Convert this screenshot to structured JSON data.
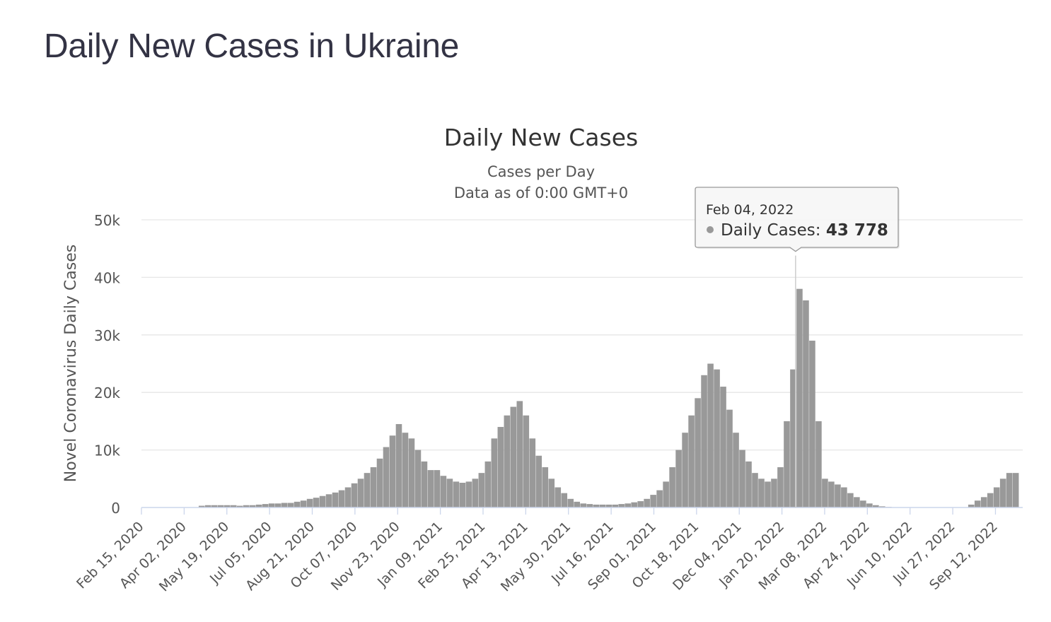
{
  "page": {
    "title": "Daily New Cases in Ukraine"
  },
  "colors": {
    "bar": "#999999",
    "grid": "#e6e6e6",
    "axis_line": "#ccd6eb",
    "text": "#555555"
  },
  "tooltip": {
    "date": "Feb 04, 2022",
    "series_label": "Daily Cases: ",
    "value_text": "43 778"
  },
  "chart_data": {
    "type": "bar",
    "title": "Daily New Cases",
    "subtitle": [
      "Cases per Day",
      "Data as of 0:00 GMT+0"
    ],
    "ylabel": "Novel Coronavirus Daily Cases",
    "xlabel": "",
    "ylim": [
      0,
      50000
    ],
    "yticks": [
      0,
      10000,
      20000,
      30000,
      40000,
      50000
    ],
    "ytick_labels": [
      "0",
      "10k",
      "20k",
      "30k",
      "40k",
      "50k"
    ],
    "x_range": [
      "2020-02-15",
      "2022-10-12"
    ],
    "xtick_labels": [
      "Feb 15, 2020",
      "Apr 02, 2020",
      "May 19, 2020",
      "Jul 05, 2020",
      "Aug 21, 2020",
      "Oct 07, 2020",
      "Nov 23, 2020",
      "Jan 09, 2021",
      "Feb 25, 2021",
      "Apr 13, 2021",
      "May 30, 2021",
      "Jul 16, 2021",
      "Sep 01, 2021",
      "Oct 18, 2021",
      "Dec 04, 2021",
      "Jan 20, 2022",
      "Mar 08, 2022",
      "Apr 24, 2022",
      "Jun 10, 2022",
      "Jul 27, 2022",
      "Sep 12, 2022"
    ],
    "grid": true,
    "legend": "none",
    "highlight": {
      "date": "2022-02-04",
      "value": 43778
    },
    "series": [
      {
        "name": "Daily Cases",
        "values_description": "Approximate weekly daily-case values read from the chart, in cases",
        "week_start": [
          "2020-02-15",
          "2020-02-22",
          "2020-02-29",
          "2020-03-07",
          "2020-03-14",
          "2020-03-21",
          "2020-03-28",
          "2020-04-04",
          "2020-04-11",
          "2020-04-18",
          "2020-04-25",
          "2020-05-02",
          "2020-05-09",
          "2020-05-16",
          "2020-05-23",
          "2020-05-30",
          "2020-06-06",
          "2020-06-13",
          "2020-06-20",
          "2020-06-27",
          "2020-07-04",
          "2020-07-11",
          "2020-07-18",
          "2020-07-25",
          "2020-08-01",
          "2020-08-08",
          "2020-08-15",
          "2020-08-22",
          "2020-08-29",
          "2020-09-05",
          "2020-09-12",
          "2020-09-19",
          "2020-09-26",
          "2020-10-03",
          "2020-10-10",
          "2020-10-17",
          "2020-10-24",
          "2020-10-31",
          "2020-11-07",
          "2020-11-14",
          "2020-11-21",
          "2020-11-28",
          "2020-12-05",
          "2020-12-12",
          "2020-12-19",
          "2020-12-26",
          "2021-01-02",
          "2021-01-09",
          "2021-01-16",
          "2021-01-23",
          "2021-01-30",
          "2021-02-06",
          "2021-02-13",
          "2021-02-20",
          "2021-02-27",
          "2021-03-06",
          "2021-03-13",
          "2021-03-20",
          "2021-03-27",
          "2021-04-03",
          "2021-04-10",
          "2021-04-17",
          "2021-04-24",
          "2021-05-01",
          "2021-05-08",
          "2021-05-15",
          "2021-05-22",
          "2021-05-29",
          "2021-06-05",
          "2021-06-12",
          "2021-06-19",
          "2021-06-26",
          "2021-07-03",
          "2021-07-10",
          "2021-07-17",
          "2021-07-24",
          "2021-07-31",
          "2021-08-07",
          "2021-08-14",
          "2021-08-21",
          "2021-08-28",
          "2021-09-04",
          "2021-09-11",
          "2021-09-18",
          "2021-09-25",
          "2021-10-02",
          "2021-10-09",
          "2021-10-16",
          "2021-10-23",
          "2021-10-30",
          "2021-11-06",
          "2021-11-13",
          "2021-11-20",
          "2021-11-27",
          "2021-12-04",
          "2021-12-11",
          "2021-12-18",
          "2021-12-25",
          "2022-01-01",
          "2022-01-08",
          "2022-01-15",
          "2022-01-22",
          "2022-01-29",
          "2022-02-05",
          "2022-02-12",
          "2022-02-19",
          "2022-02-26",
          "2022-03-05",
          "2022-03-12",
          "2022-03-19",
          "2022-03-26",
          "2022-04-02",
          "2022-04-09",
          "2022-04-16",
          "2022-04-23",
          "2022-04-30",
          "2022-05-07",
          "2022-05-14",
          "2022-05-21",
          "2022-05-28",
          "2022-06-04",
          "2022-06-11",
          "2022-06-18",
          "2022-06-25",
          "2022-07-02",
          "2022-07-09",
          "2022-07-16",
          "2022-07-23",
          "2022-07-30",
          "2022-08-06",
          "2022-08-13",
          "2022-08-20",
          "2022-08-27",
          "2022-09-03",
          "2022-09-10",
          "2022-09-17",
          "2022-09-24",
          "2022-10-01"
        ],
        "values": [
          0,
          0,
          0,
          0,
          0,
          0,
          0,
          0,
          0,
          300,
          400,
          400,
          400,
          400,
          400,
          300,
          400,
          400,
          500,
          600,
          700,
          700,
          800,
          800,
          1000,
          1200,
          1500,
          1700,
          2000,
          2300,
          2600,
          3000,
          3500,
          4200,
          5000,
          6000,
          7000,
          8500,
          10500,
          12500,
          14500,
          13000,
          12000,
          10000,
          8000,
          6500,
          6500,
          5500,
          5000,
          4500,
          4300,
          4500,
          5000,
          6000,
          8000,
          12000,
          14000,
          16000,
          17500,
          18500,
          16000,
          12000,
          9000,
          7000,
          5000,
          3500,
          2500,
          1500,
          1000,
          700,
          600,
          500,
          500,
          500,
          500,
          600,
          700,
          900,
          1100,
          1500,
          2200,
          3000,
          4500,
          7000,
          10000,
          13000,
          16000,
          19000,
          23000,
          25000,
          24000,
          21000,
          17000,
          13000,
          10000,
          8000,
          6000,
          5000,
          4500,
          5000,
          7000,
          15000,
          24000,
          38000,
          36000,
          29000,
          15000,
          5000,
          4500,
          4000,
          3500,
          2500,
          1800,
          1200,
          700,
          400,
          200,
          100,
          0,
          0,
          0,
          0,
          0,
          0,
          0,
          0,
          0,
          0,
          0,
          0,
          500,
          1200,
          1800,
          2500,
          3500,
          5000,
          6000,
          6000
        ]
      }
    ]
  }
}
